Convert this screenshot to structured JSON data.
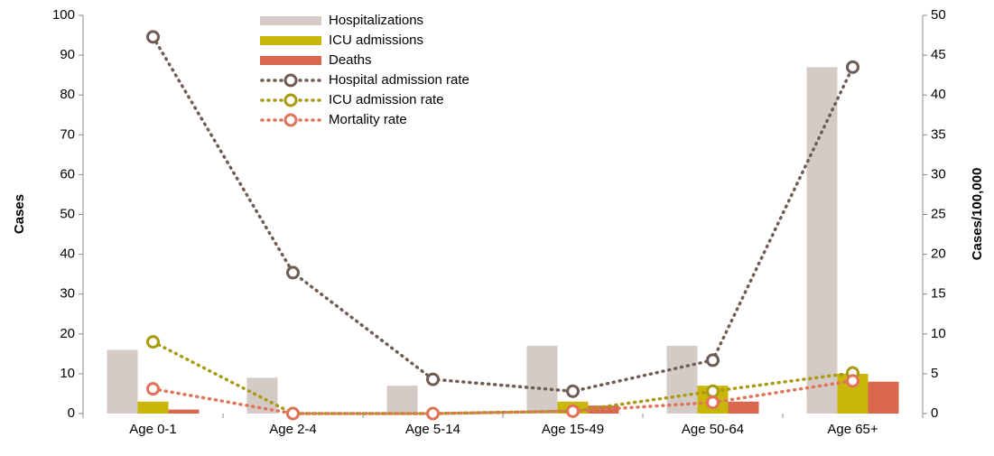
{
  "chart_data": {
    "type": "bar",
    "categories": [
      "Age 0-1",
      "Age 2-4",
      "Age 5-14",
      "Age 15-49",
      "Age 50-64",
      "Age 65+"
    ],
    "y_label": "Cases",
    "y2_label": "Cases/100,000",
    "ylim": [
      0,
      100
    ],
    "yticks": [
      0,
      10,
      20,
      30,
      40,
      50,
      60,
      70,
      80,
      90,
      100
    ],
    "y2lim": [
      0,
      50
    ],
    "y2ticks": [
      0,
      5,
      10,
      15,
      20,
      25,
      30,
      35,
      40,
      45,
      50
    ],
    "legend": "top-left",
    "series": [
      {
        "name": "Hospitalizations",
        "type": "bar",
        "color": "#d5cbc6",
        "values": [
          16,
          9,
          7,
          17,
          17,
          87
        ]
      },
      {
        "name": "ICU admissions",
        "type": "bar",
        "color": "#c9b60a",
        "values": [
          3,
          0,
          0,
          3,
          7,
          10
        ]
      },
      {
        "name": "Deaths",
        "type": "bar",
        "color": "#d9674e",
        "values": [
          1,
          0,
          0,
          2,
          3,
          8
        ]
      },
      {
        "name": "Hospital admission rate",
        "type": "line",
        "axis": "y2",
        "color": "#6e5d55",
        "values": [
          47.3,
          17.7,
          4.3,
          2.8,
          6.7,
          43.5
        ]
      },
      {
        "name": "ICU admission rate",
        "type": "line",
        "axis": "y2",
        "color": "#a99a12",
        "values": [
          9.0,
          0,
          0,
          0.3,
          2.8,
          5.1
        ]
      },
      {
        "name": "Mortality rate",
        "type": "line",
        "axis": "y2",
        "color": "#e0745a",
        "values": [
          3.1,
          0,
          0,
          0.3,
          1.4,
          4.1
        ]
      }
    ]
  }
}
